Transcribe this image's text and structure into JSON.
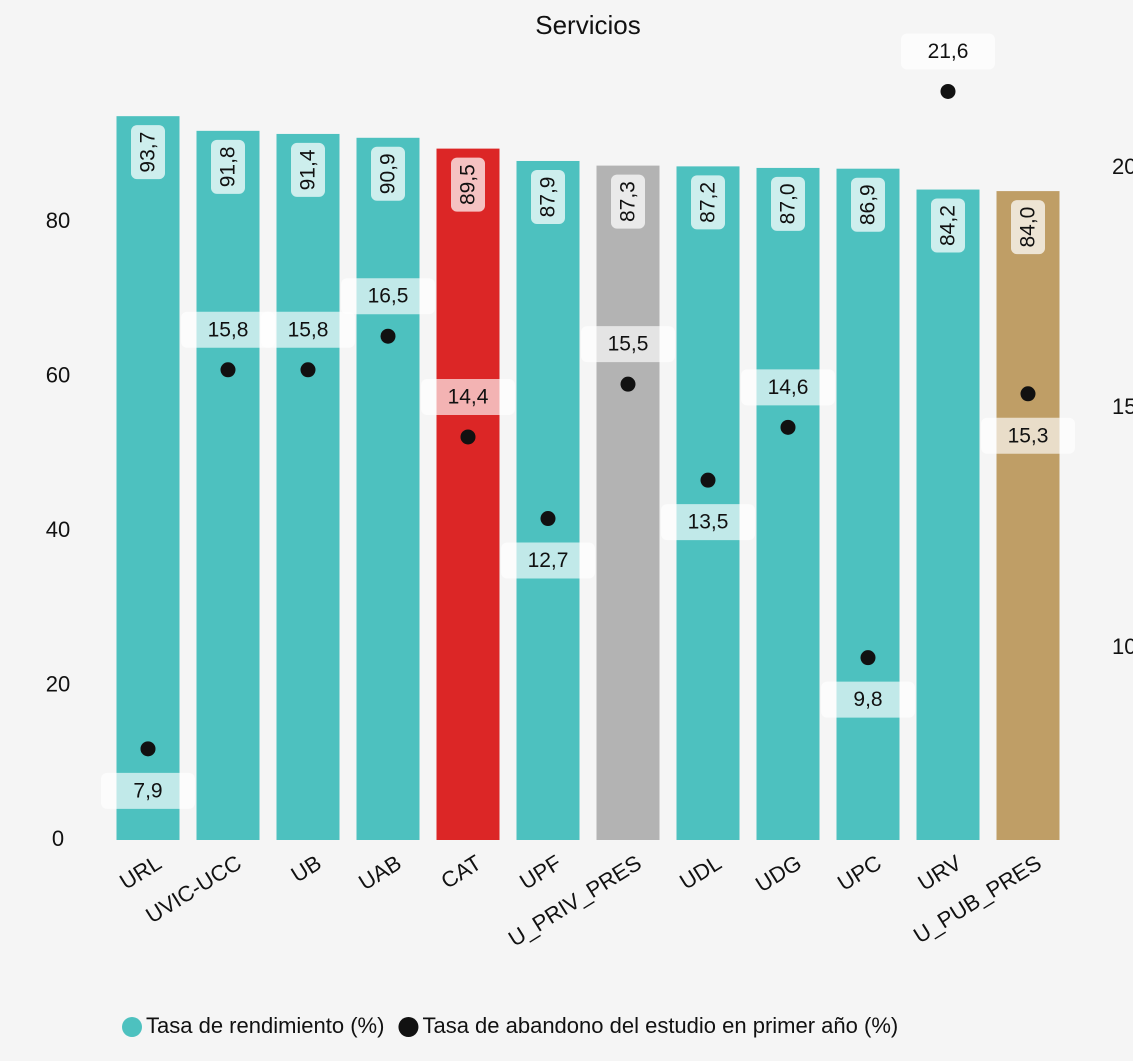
{
  "chart_data": {
    "type": "bar",
    "title": "Servicios",
    "categories": [
      "URL",
      "UVIC-UCC",
      "UB",
      "UAB",
      "CAT",
      "UPF",
      "U_PRIV_PRES",
      "UDL",
      "UDG",
      "UPC",
      "URV",
      "U_PUB_PRES"
    ],
    "series": [
      {
        "name": "Tasa de rendimiento (%)",
        "type": "bar",
        "color": "#4dc1bf",
        "colors": [
          "#4dc1bf",
          "#4dc1bf",
          "#4dc1bf",
          "#4dc1bf",
          "#dc2626",
          "#4dc1bf",
          "#b3b3b3",
          "#4dc1bf",
          "#4dc1bf",
          "#4dc1bf",
          "#4dc1bf",
          "#bf9e66"
        ],
        "values": [
          93.7,
          91.8,
          91.4,
          90.9,
          89.5,
          87.9,
          87.3,
          87.2,
          87.0,
          86.9,
          84.2,
          84.0
        ],
        "value_labels": [
          "93,7",
          "91,8",
          "91,4",
          "90,9",
          "89,5",
          "87,9",
          "87,3",
          "87,2",
          "87,0",
          "86,9",
          "84,2",
          "84,0"
        ]
      },
      {
        "name": "Tasa de abandono del estudio en primer año (%)",
        "type": "scatter",
        "color": "#111111",
        "axis": "y2",
        "values": [
          7.9,
          15.8,
          15.8,
          16.5,
          14.4,
          12.7,
          15.5,
          13.5,
          14.6,
          9.8,
          21.6,
          15.3
        ],
        "value_labels": [
          "7,9",
          "15,8",
          "15,8",
          "16,5",
          "14,4",
          "12,7",
          "15,5",
          "13,5",
          "14,6",
          "9,8",
          "21,6",
          "15,3"
        ]
      }
    ],
    "ylim": [
      0,
      100
    ],
    "yticks": [
      0,
      20,
      40,
      60,
      80
    ],
    "y2lim": [
      6,
      22.1
    ],
    "y2ticks": [
      10,
      15,
      20
    ],
    "legend": "bottom"
  }
}
